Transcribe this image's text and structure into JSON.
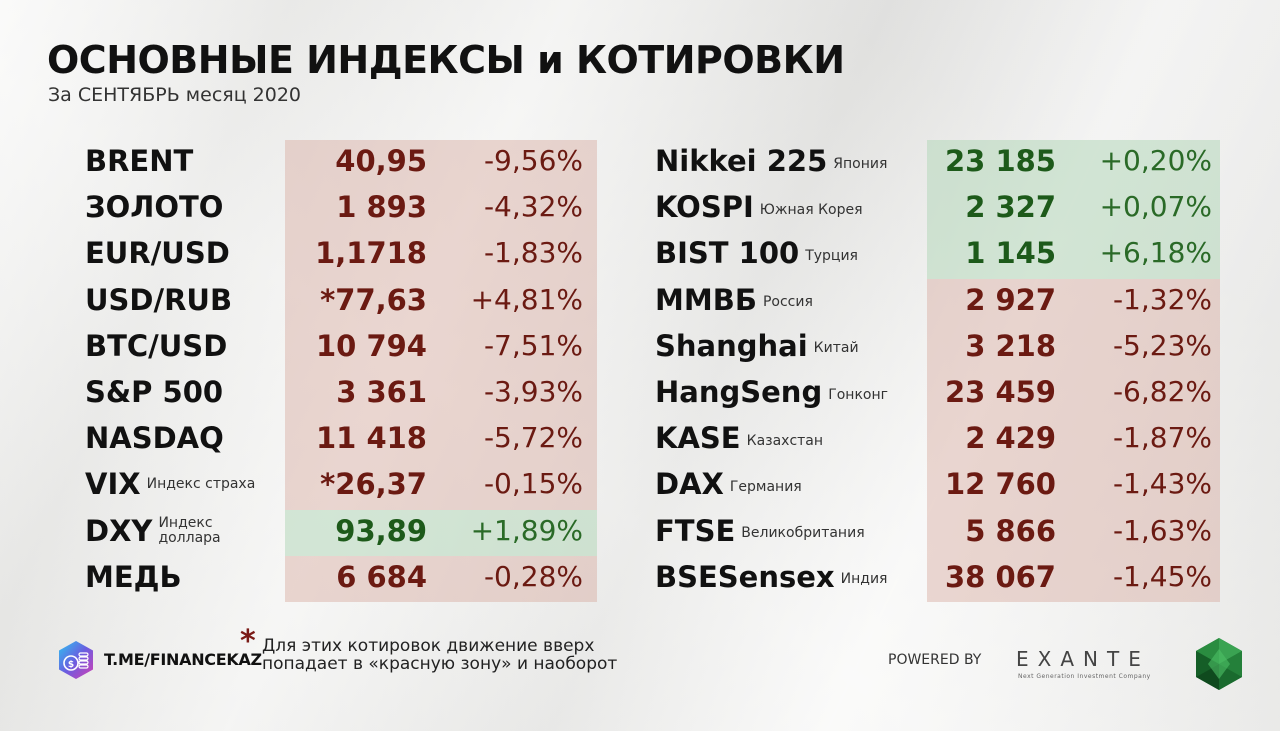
{
  "header": {
    "title": "ОСНОВНЫЕ ИНДЕКСЫ и КОТИРОВКИ",
    "subtitle": "За СЕНТЯБРЬ месяц 2020"
  },
  "colors": {
    "negative": "#6b1a12",
    "positive": "#1d5a1a",
    "negative_bg": "#e6cfc9",
    "positive_bg": "#cfe3d0"
  },
  "left_table": [
    {
      "name": "BRENT",
      "sub": "",
      "value": "40,95",
      "change": "-9,56%",
      "zone": "red"
    },
    {
      "name": "ЗОЛОТО",
      "sub": "",
      "value": "1 893",
      "change": "-4,32%",
      "zone": "red"
    },
    {
      "name": "EUR/USD",
      "sub": "",
      "value": "1,1718",
      "change": "-1,83%",
      "zone": "red"
    },
    {
      "name": "USD/RUB",
      "sub": "",
      "value": "*77,63",
      "change": "+4,81%",
      "zone": "red"
    },
    {
      "name": "BTC/USD",
      "sub": "",
      "value": "10 794",
      "change": "-7,51%",
      "zone": "red"
    },
    {
      "name": "S&P 500",
      "sub": "",
      "value": "3 361",
      "change": "-3,93%",
      "zone": "red"
    },
    {
      "name": "NASDAQ",
      "sub": "",
      "value": "11 418",
      "change": "-5,72%",
      "zone": "red"
    },
    {
      "name": "VIX",
      "sub": "Индекс страха",
      "value": "*26,37",
      "change": "-0,15%",
      "zone": "red"
    },
    {
      "name": "DXY",
      "sub": "Индекс доллара",
      "value": "93,89",
      "change": "+1,89%",
      "zone": "green"
    },
    {
      "name": "МЕДЬ",
      "sub": "",
      "value": "6 684",
      "change": "-0,28%",
      "zone": "red"
    }
  ],
  "right_table": [
    {
      "name": "Nikkei 225",
      "sub": "Япония",
      "value": "23 185",
      "change": "+0,20%",
      "zone": "green"
    },
    {
      "name": "KOSPI",
      "sub": "Южная Корея",
      "value": "2 327",
      "change": "+0,07%",
      "zone": "green"
    },
    {
      "name": "BIST 100",
      "sub": "Турция",
      "value": "1 145",
      "change": "+6,18%",
      "zone": "green"
    },
    {
      "name": "ММВБ",
      "sub": "Россия",
      "value": "2 927",
      "change": "-1,32%",
      "zone": "red"
    },
    {
      "name": "Shanghai",
      "sub": "Китай",
      "value": "3 218",
      "change": "-5,23%",
      "zone": "red"
    },
    {
      "name": "HangSeng",
      "sub": "Гонконг",
      "value": "23 459",
      "change": "-6,82%",
      "zone": "red"
    },
    {
      "name": "KASE",
      "sub": "Казахстан",
      "value": "2 429",
      "change": "-1,87%",
      "zone": "red"
    },
    {
      "name": "DAX",
      "sub": "Германия",
      "value": "12 760",
      "change": "-1,43%",
      "zone": "red"
    },
    {
      "name": "FTSE",
      "sub": "Великобритания",
      "value": "5 866",
      "change": "-1,63%",
      "zone": "red"
    },
    {
      "name": "BSESensex",
      "sub": "Индия",
      "value": "38 067",
      "change": "-1,45%",
      "zone": "red"
    }
  ],
  "footer": {
    "link": "T.ME/FINANCEKAZ",
    "asterisk": "*",
    "note": "Для этих котировок движение вверх попадает в «красную зону» и наоборот",
    "powered_by": "POWERED BY",
    "brand": "EXANTE",
    "brand_tagline": "Next Generation Investment Company",
    "logo_icon": "coin-stack-icon",
    "brand_icon": "emerald-gem-icon"
  }
}
